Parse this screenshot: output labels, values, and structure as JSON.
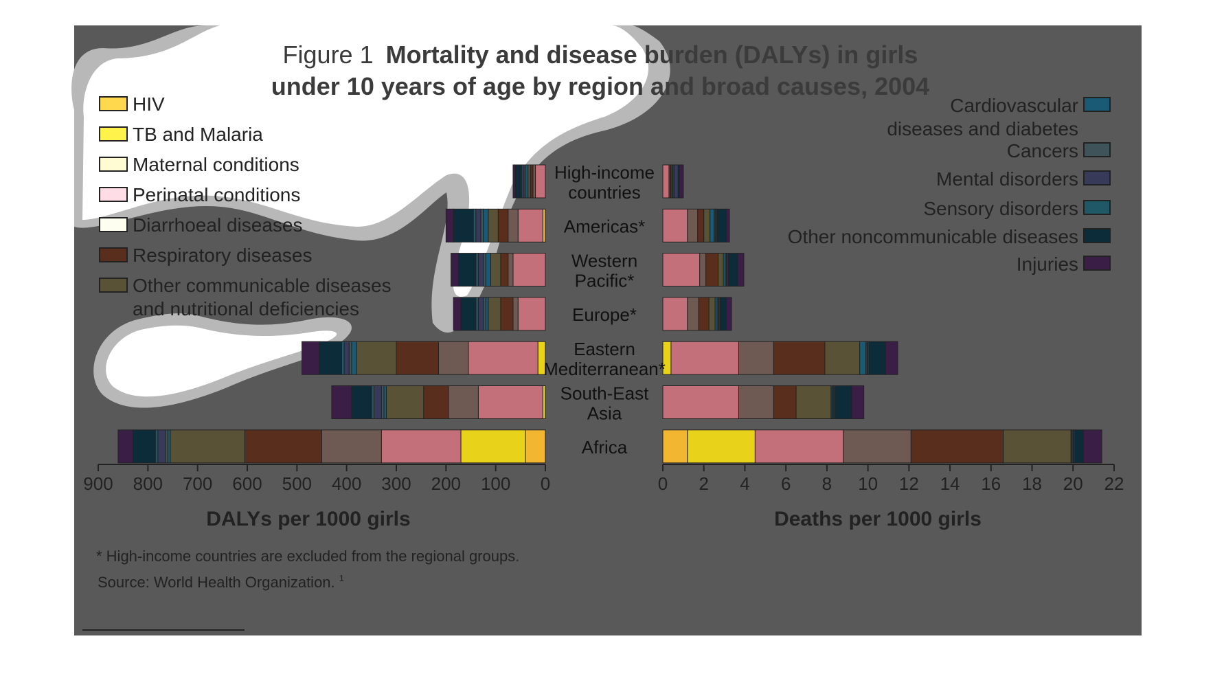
{
  "title": {
    "prefix": "Figure 1",
    "line1": "Mortality and disease burden (DALYs) in girls",
    "line2": "under 10 years of age by region and broad causes, 2004"
  },
  "colors": {
    "panel": "#595959",
    "HIV": "#f2b630",
    "TB and Malaria": "#e8d21a",
    "Maternal conditions": "#f3f1cf",
    "Perinatal conditions": "#c4707a",
    "Diarrhoeal diseases": "#6e5a52",
    "Respiratory diseases": "#5a2e1c",
    "Other communicable diseases and nutritional deficiencies": "#5a5236",
    "Cardiovascular diseases and diabetes": "#1a5a74",
    "Cancers": "#3e545a",
    "Mental disorders": "#383a5a",
    "Sensory disorders": "#205868",
    "Other noncommunicable diseases": "#0c2c3a",
    "Injuries": "#3a1e46"
  },
  "legend_left": [
    {
      "key": "HIV",
      "label": "HIV",
      "swatch": "#ffd84e"
    },
    {
      "key": "TB and Malaria",
      "label": "TB and Malaria",
      "swatch": "#fff24a"
    },
    {
      "key": "Maternal conditions",
      "label": "Maternal conditions",
      "swatch": "#fffbd2"
    },
    {
      "key": "Perinatal conditions",
      "label": "Perinatal conditions",
      "swatch": "#ffdde6"
    },
    {
      "key": "Diarrhoeal diseases",
      "label": "Diarrhoeal diseases",
      "swatch": "#fdfdf0"
    },
    {
      "key": "Respiratory diseases",
      "label": "Respiratory diseases",
      "swatch": "#5a2e1c"
    },
    {
      "key": "Other communicable diseases and nutritional deficiencies",
      "label": "Other communicable diseases",
      "label2": "and nutritional deficiencies",
      "swatch": "#5a5236"
    }
  ],
  "legend_right": [
    {
      "key": "Cardiovascular diseases and diabetes",
      "label": "Cardiovascular",
      "label2": "diseases and diabetes"
    },
    {
      "key": "Cancers",
      "label": "Cancers"
    },
    {
      "key": "Mental disorders",
      "label": "Mental disorders"
    },
    {
      "key": "Sensory disorders",
      "label": "Sensory disorders"
    },
    {
      "key": "Other noncommunicable diseases",
      "label": "Other noncommunicable diseases"
    },
    {
      "key": "Injuries",
      "label": "Injuries"
    }
  ],
  "chart_data": [
    {
      "type": "bar",
      "orientation": "horizontal-stacked",
      "direction": "right-to-left",
      "xlabel": "DALYs per 1000 girls",
      "xlim": [
        0,
        900
      ],
      "xticks": [
        900,
        800,
        700,
        600,
        500,
        400,
        300,
        200,
        100,
        0
      ],
      "categories": [
        "High-income countries",
        "Americas*",
        "Western Pacific*",
        "Europe*",
        "Eastern Mediterranean*",
        "South-East Asia",
        "Africa"
      ],
      "stack_order": [
        "HIV",
        "TB and Malaria",
        "Maternal conditions",
        "Perinatal conditions",
        "Diarrhoeal diseases",
        "Respiratory diseases",
        "Other communicable diseases and nutritional deficiencies",
        "Cardiovascular diseases and diabetes",
        "Cancers",
        "Mental disorders",
        "Sensory disorders",
        "Other noncommunicable diseases",
        "Injuries"
      ],
      "series": [
        {
          "name": "HIV",
          "values": [
            0,
            5,
            0,
            0,
            0,
            0,
            40
          ]
        },
        {
          "name": "TB and Malaria",
          "values": [
            0,
            0,
            0,
            0,
            15,
            5,
            130
          ]
        },
        {
          "name": "Maternal conditions",
          "values": [
            0,
            0,
            0,
            0,
            0,
            0,
            0
          ]
        },
        {
          "name": "Perinatal conditions",
          "values": [
            20,
            50,
            65,
            55,
            140,
            130,
            160
          ]
        },
        {
          "name": "Diarrhoeal diseases",
          "values": [
            5,
            20,
            10,
            10,
            60,
            60,
            120
          ]
        },
        {
          "name": "Respiratory diseases",
          "values": [
            5,
            20,
            15,
            25,
            85,
            50,
            155
          ]
        },
        {
          "name": "Other communicable diseases and nutritional deficiencies",
          "values": [
            5,
            20,
            20,
            25,
            80,
            75,
            150
          ]
        },
        {
          "name": "Cardiovascular diseases and diabetes",
          "values": [
            5,
            10,
            10,
            5,
            10,
            5,
            5
          ]
        },
        {
          "name": "Cancers",
          "values": [
            3,
            5,
            5,
            5,
            5,
            5,
            5
          ]
        },
        {
          "name": "Mental disorders",
          "values": [
            5,
            10,
            10,
            10,
            10,
            15,
            15
          ]
        },
        {
          "name": "Sensory disorders",
          "values": [
            2,
            5,
            5,
            5,
            5,
            5,
            5
          ]
        },
        {
          "name": "Other noncommunicable diseases",
          "values": [
            10,
            40,
            35,
            30,
            45,
            40,
            45
          ]
        },
        {
          "name": "Injuries",
          "values": [
            5,
            15,
            15,
            15,
            35,
            40,
            30
          ]
        }
      ]
    },
    {
      "type": "bar",
      "orientation": "horizontal-stacked",
      "direction": "left-to-right",
      "xlabel": "Deaths per 1000 girls",
      "xlim": [
        0,
        22
      ],
      "xticks": [
        0,
        2,
        4,
        6,
        8,
        10,
        12,
        14,
        16,
        18,
        20,
        22
      ],
      "categories": [
        "High-income countries",
        "Americas*",
        "Western Pacific*",
        "Europe*",
        "Eastern Mediterranean*",
        "South-East Asia",
        "Africa"
      ],
      "stack_order": [
        "HIV",
        "TB and Malaria",
        "Maternal conditions",
        "Perinatal conditions",
        "Diarrhoeal diseases",
        "Respiratory diseases",
        "Other communicable diseases and nutritional deficiencies",
        "Cardiovascular diseases and diabetes",
        "Cancers",
        "Mental disorders",
        "Sensory disorders",
        "Other noncommunicable diseases",
        "Injuries"
      ],
      "series": [
        {
          "name": "HIV",
          "values": [
            0,
            0,
            0,
            0,
            0,
            0,
            1.2
          ]
        },
        {
          "name": "TB and Malaria",
          "values": [
            0,
            0,
            0,
            0,
            0.4,
            0,
            3.3
          ]
        },
        {
          "name": "Maternal conditions",
          "values": [
            0,
            0,
            0,
            0,
            0,
            0,
            0
          ]
        },
        {
          "name": "Perinatal conditions",
          "values": [
            0.3,
            1.2,
            1.8,
            1.2,
            3.3,
            3.7,
            4.3
          ]
        },
        {
          "name": "Diarrhoeal diseases",
          "values": [
            0.05,
            0.5,
            0.3,
            0.55,
            1.7,
            1.7,
            3.3
          ]
        },
        {
          "name": "Respiratory diseases",
          "values": [
            0.05,
            0.3,
            0.6,
            0.5,
            2.5,
            1.1,
            4.5
          ]
        },
        {
          "name": "Other communicable diseases and nutritional deficiencies",
          "values": [
            0.05,
            0.3,
            0.25,
            0.3,
            1.7,
            1.7,
            3.3
          ]
        },
        {
          "name": "Cardiovascular diseases and diabetes",
          "values": [
            0.05,
            0.2,
            0.1,
            0.1,
            0.3,
            0.05,
            0.05
          ]
        },
        {
          "name": "Cancers",
          "values": [
            0.05,
            0.05,
            0.05,
            0.05,
            0.05,
            0.05,
            0.05
          ]
        },
        {
          "name": "Mental disorders",
          "values": [
            0.2,
            0.05,
            0.05,
            0.05,
            0.05,
            0.05,
            0.05
          ]
        },
        {
          "name": "Sensory disorders",
          "values": [
            0,
            0.05,
            0.05,
            0.05,
            0.05,
            0.05,
            0.05
          ]
        },
        {
          "name": "Other noncommunicable diseases",
          "values": [
            0.05,
            0.45,
            0.45,
            0.3,
            0.8,
            0.8,
            0.4
          ]
        },
        {
          "name": "Injuries",
          "values": [
            0.2,
            0.15,
            0.3,
            0.25,
            0.6,
            0.6,
            0.9
          ]
        }
      ]
    }
  ],
  "region_labels": [
    {
      "line1": "High-income",
      "line2": "countries"
    },
    {
      "line1": "Americas*",
      "line2": ""
    },
    {
      "line1": "Western",
      "line2": "Pacific*"
    },
    {
      "line1": "Europe*",
      "line2": ""
    },
    {
      "line1": "Eastern",
      "line2": "Mediterranean*"
    },
    {
      "line1": "South-East",
      "line2": "Asia"
    },
    {
      "line1": "Africa",
      "line2": ""
    }
  ],
  "footnotes": {
    "note": "* High-income countries are excluded from the regional groups.",
    "source": "Source: World Health Organization.",
    "source_ref": "1"
  }
}
